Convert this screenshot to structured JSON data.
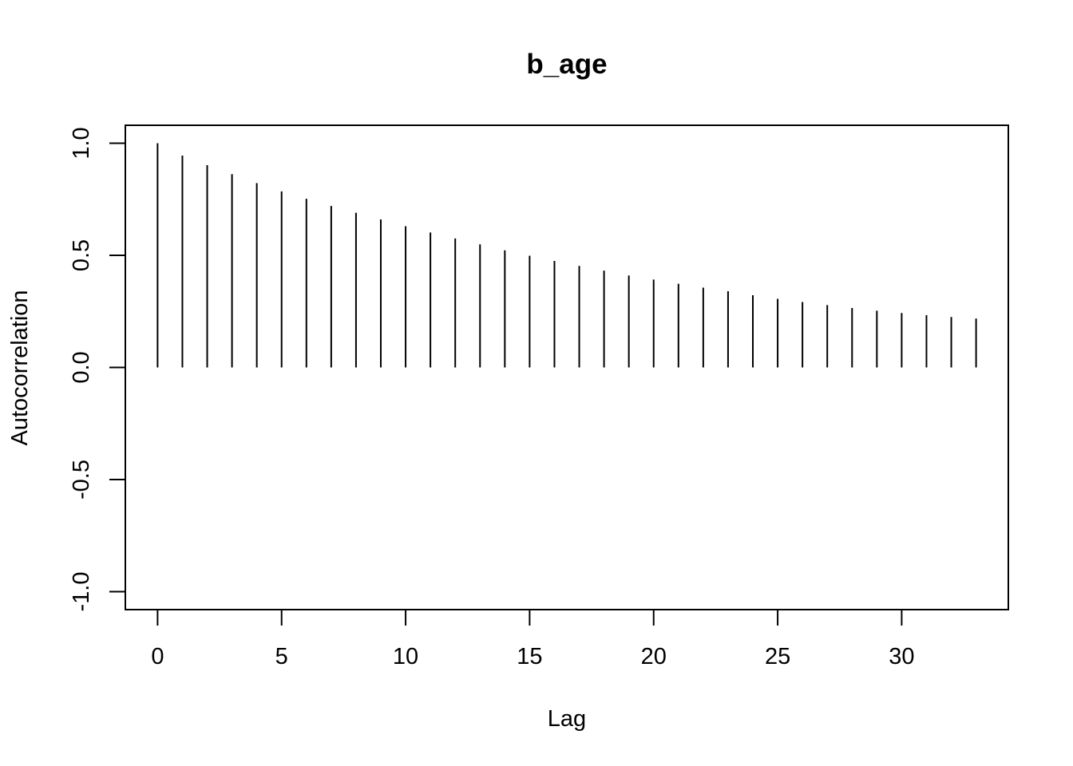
{
  "chart_data": {
    "type": "bar",
    "title": "b_age",
    "xlabel": "Lag",
    "ylabel": "Autocorrelation",
    "xlim": [
      -1.3,
      34.3
    ],
    "ylim": [
      -1.08,
      1.08
    ],
    "x_ticks": [
      0,
      5,
      10,
      15,
      20,
      25,
      30
    ],
    "y_ticks": [
      -1.0,
      -0.5,
      0.0,
      0.5,
      1.0
    ],
    "x_tick_labels": [
      "0",
      "5",
      "10",
      "15",
      "20",
      "25",
      "30"
    ],
    "y_tick_labels": [
      "-1.0",
      "-0.5",
      "0.0",
      "0.5",
      "1.0"
    ],
    "grid": false,
    "x": [
      0,
      1,
      2,
      3,
      4,
      5,
      6,
      7,
      8,
      9,
      10,
      11,
      12,
      13,
      14,
      15,
      16,
      17,
      18,
      19,
      20,
      21,
      22,
      23,
      24,
      25,
      26,
      27,
      28,
      29,
      30,
      31,
      32,
      33
    ],
    "values": [
      1.0,
      0.945,
      0.902,
      0.862,
      0.822,
      0.785,
      0.752,
      0.72,
      0.69,
      0.66,
      0.63,
      0.602,
      0.575,
      0.549,
      0.522,
      0.498,
      0.475,
      0.453,
      0.432,
      0.41,
      0.392,
      0.373,
      0.356,
      0.34,
      0.322,
      0.306,
      0.292,
      0.278,
      0.265,
      0.253,
      0.243,
      0.233,
      0.225,
      0.218
    ]
  }
}
